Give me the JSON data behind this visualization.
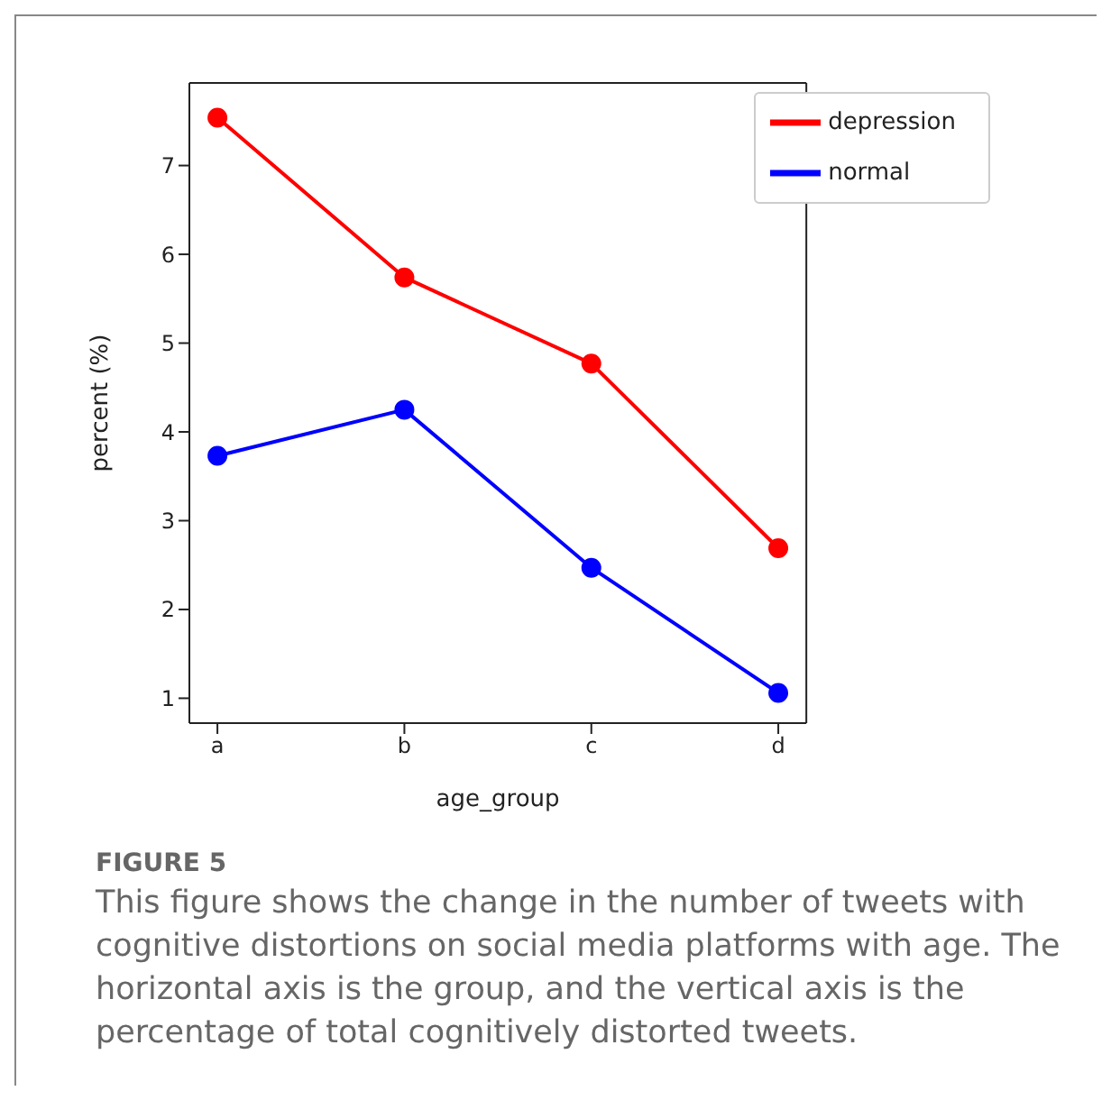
{
  "chart_data": {
    "type": "line",
    "xlabel": "age_group",
    "ylabel": "percent (%)",
    "categories": [
      "a",
      "b",
      "c",
      "d"
    ],
    "series": [
      {
        "name": "depression",
        "color": "#ff0000",
        "values": [
          7.54,
          5.74,
          4.77,
          2.69
        ]
      },
      {
        "name": "normal",
        "color": "#0000ff",
        "values": [
          3.73,
          4.25,
          2.47,
          1.06
        ]
      }
    ],
    "ylim": [
      0.72,
      7.93
    ],
    "yticks": [
      1,
      2,
      3,
      4,
      5,
      6,
      7
    ],
    "legend": "top right",
    "marker": "circle",
    "line_style": "solid",
    "annotations": [
      "FIGURE 5",
      "This figure shows the change in the number of tweets with cognitive distortions on social media platforms with age. The horizontal axis is the group, and the vertical axis is the percentage of total cognitively distorted tweets."
    ]
  }
}
